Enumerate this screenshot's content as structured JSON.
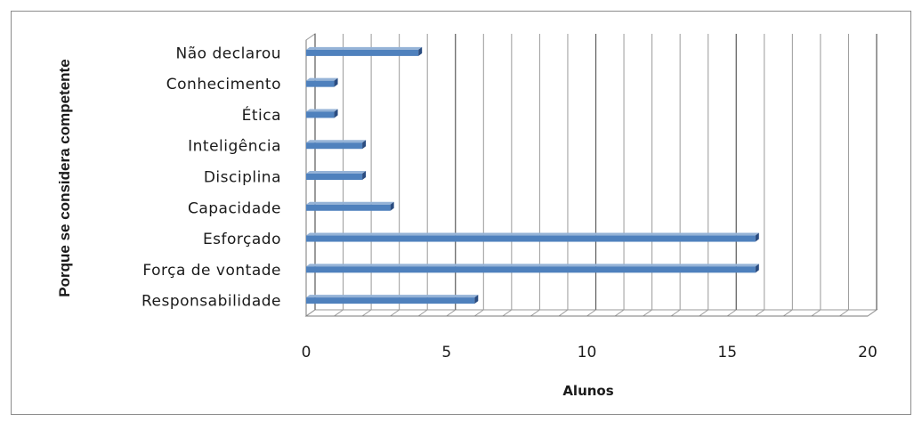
{
  "chart_data": {
    "type": "bar",
    "orientation": "horizontal",
    "categories": [
      "Responsabilidade",
      "Força de vontade",
      "Esforçado",
      "Capacidade",
      "Disciplina",
      "Inteligência",
      "Ética",
      "Conhecimento",
      "Não declarou"
    ],
    "values": [
      6,
      16,
      16,
      3,
      2,
      2,
      1,
      1,
      4
    ],
    "xlabel": "Alunos",
    "ylabel": "Porque se considera competente",
    "xlim": [
      0,
      20
    ],
    "xticks": [
      0,
      5,
      10,
      15,
      20
    ],
    "grid": true,
    "bar_color": "#4f81bd",
    "bar_dark_color": "#2a4c80",
    "legend": null
  }
}
